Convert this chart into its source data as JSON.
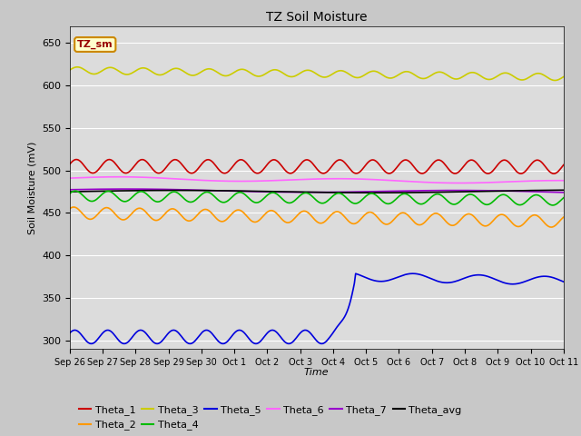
{
  "title": "TZ Soil Moisture",
  "xlabel": "Time",
  "ylabel": "Soil Moisture (mV)",
  "ylim": [
    290,
    670
  ],
  "yticks": [
    300,
    350,
    400,
    450,
    500,
    550,
    600,
    650
  ],
  "xtick_labels": [
    "Sep 26",
    "Sep 27",
    "Sep 28",
    "Sep 29",
    "Sep 30",
    "Oct 1",
    "Oct 2",
    "Oct 3",
    "Oct 4",
    "Oct 5",
    "Oct 6",
    "Oct 7",
    "Oct 8",
    "Oct 9",
    "Oct 10",
    "Oct 11"
  ],
  "axes_facecolor": "#dcdcdc",
  "fig_facecolor": "#c8c8c8",
  "legend_box_label": "TZ_sm",
  "legend_box_facecolor": "#ffffcc",
  "legend_box_edgecolor": "#cc8800",
  "legend_box_textcolor": "#990000",
  "n_points": 400,
  "days": 15,
  "jump_day": 8.7,
  "series": {
    "Theta_1": {
      "color": "#cc0000",
      "base": 505,
      "amplitude": 8,
      "freq_mult": 1.0,
      "phase": 0.3,
      "trend": -0.5
    },
    "Theta_2": {
      "color": "#ff9900",
      "base": 450,
      "amplitude": 7,
      "freq_mult": 1.0,
      "phase": 0.8,
      "trend": -1.0
    },
    "Theta_3": {
      "color": "#cccc00",
      "base": 618,
      "amplitude": 4,
      "freq_mult": 1.0,
      "phase": 0.1,
      "trend": -0.8
    },
    "Theta_4": {
      "color": "#00bb00",
      "base": 470,
      "amplitude": 6,
      "freq_mult": 1.0,
      "phase": 0.5,
      "trend": -0.5
    },
    "Theta_5": {
      "color": "#0000dd",
      "base_early": 304,
      "amp_early": 8,
      "phase_early": 0.6,
      "base_late": 375,
      "amp_late": 5,
      "phase_late": 0.2,
      "trend_late": -0.8
    },
    "Theta_6": {
      "color": "#ff66ff",
      "base": 491,
      "amplitude": 2,
      "freq_mult": 0.15,
      "phase": 0.0,
      "trend": -0.6
    },
    "Theta_7": {
      "color": "#9900cc",
      "base": 477,
      "amplitude": 1.5,
      "freq_mult": 0.1,
      "phase": 0.3,
      "trend": -0.4
    },
    "Theta_avg": {
      "color": "#000000",
      "base": 475,
      "amplitude": 1.5,
      "freq_mult": 0.08,
      "phase": 0.0,
      "trend": 0.1
    }
  }
}
